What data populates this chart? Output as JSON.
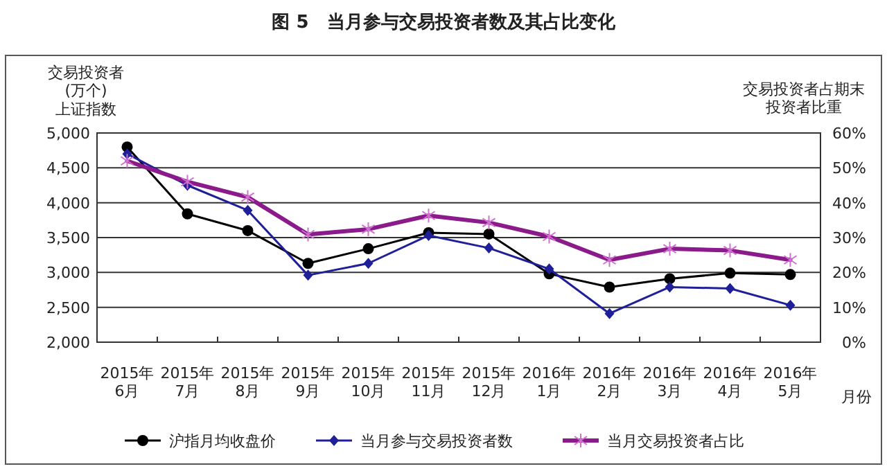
{
  "chart_data": {
    "type": "line",
    "title": "图 5　当月参与交易投资者数及其占比变化",
    "ylabel": "交易投资者\n(万个)\n上证指数",
    "y2label": "交易投资者占期末投资者比重",
    "xlabel": "月份",
    "categories": [
      "2015年\n6月",
      "2015年\n7月",
      "2015年\n8月",
      "2015年\n9月",
      "2015年\n10月",
      "2015年\n11月",
      "2015年\n12月",
      "2016年\n1月",
      "2016年\n2月",
      "2016年\n3月",
      "2016年\n4月",
      "2016年\n5月"
    ],
    "series": [
      {
        "name": "沪指月均收盘价",
        "color": "#000000",
        "marker": "circle",
        "values": [
          4800,
          3840,
          3600,
          3130,
          3340,
          3570,
          3550,
          2980,
          2790,
          2910,
          2990,
          2970
        ]
      },
      {
        "name": "当月参与交易投资者数",
        "color": "#1f1f9a",
        "marker": "diamond",
        "values": [
          4700,
          4250,
          3890,
          2960,
          3130,
          3530,
          3350,
          3050,
          2410,
          2790,
          2770,
          2530
        ]
      },
      {
        "name": "当月交易投资者占比",
        "color": "#8b1a8b",
        "marker": "cross",
        "axis": "y2",
        "values": [
          52,
          46,
          41.6,
          30.9,
          32.4,
          36.3,
          34.3,
          30.3,
          23.6,
          26.8,
          26.3,
          23.6
        ]
      }
    ],
    "ylim": [
      2000,
      5000
    ],
    "yticks": [
      {
        "value": 2000,
        "label": "2,000"
      },
      {
        "value": 2500,
        "label": "2,500"
      },
      {
        "value": 3000,
        "label": "3,000"
      },
      {
        "value": 3500,
        "label": "3,500"
      },
      {
        "value": 4000,
        "label": "4,000"
      },
      {
        "value": 4500,
        "label": "4,500"
      },
      {
        "value": 5000,
        "label": "5,000"
      }
    ],
    "y2lim": [
      0,
      60
    ],
    "y2ticks": [
      {
        "value": 0,
        "label": "0%"
      },
      {
        "value": 10,
        "label": "10%"
      },
      {
        "value": 20,
        "label": "20%"
      },
      {
        "value": 30,
        "label": "30%"
      },
      {
        "value": 40,
        "label": "40%"
      },
      {
        "value": 50,
        "label": "50%"
      },
      {
        "value": 60,
        "label": "60%"
      }
    ],
    "grid": "y",
    "legend": "bottom",
    "line_style": "solid"
  }
}
